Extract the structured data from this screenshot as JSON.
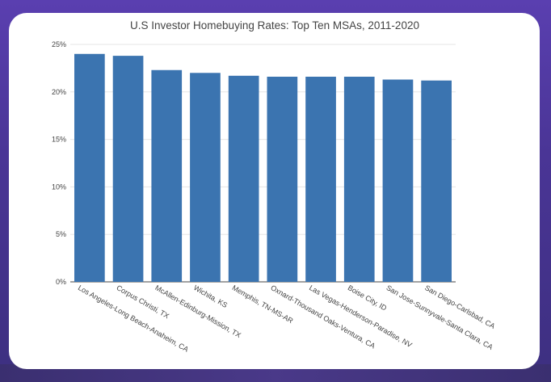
{
  "chart_data": {
    "type": "bar",
    "title": "U.S Investor Homebuying Rates: Top Ten MSAs, 2011-2020",
    "xlabel": "",
    "ylabel": "",
    "categories": [
      "Los Angeles-Long Beach-Anaheim, CA",
      "Corpus Christi, TX",
      "McAllen-Edinburg-Mission, TX",
      "Wichita, KS",
      "Memphis, TN-MS-AR",
      "Oxnard-Thousand Oaks-Ventura, CA",
      "Las Vegas-Henderson-Paradise, NV",
      "Boise City, ID",
      "San Jose-Sunnyvale-Santa Clara, CA",
      "San Diego-Carlsbad, CA"
    ],
    "values": [
      24.0,
      23.8,
      22.3,
      22.0,
      21.7,
      21.6,
      21.6,
      21.6,
      21.3,
      21.2
    ],
    "ylim": [
      0,
      25
    ],
    "yticks": [
      "0%",
      "5%",
      "10%",
      "15%",
      "20%",
      "25%"
    ],
    "grid": true,
    "bar_color": "#3b74b0"
  }
}
